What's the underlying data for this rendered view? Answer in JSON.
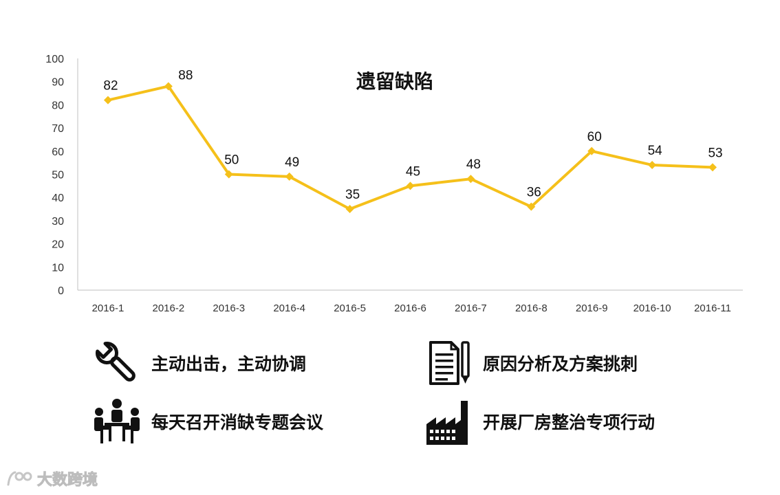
{
  "chart_data": {
    "type": "line",
    "title": "遗留缺陷",
    "categories": [
      "2016-1",
      "2016-2",
      "2016-3",
      "2016-4",
      "2016-5",
      "2016-6",
      "2016-7",
      "2016-8",
      "2016-9",
      "2016-10",
      "2016-11"
    ],
    "values": [
      82,
      88,
      50,
      49,
      35,
      45,
      48,
      36,
      60,
      54,
      53
    ],
    "ylim": [
      0,
      100
    ],
    "yticks": [
      "0",
      "10",
      "20",
      "30",
      "40",
      "50",
      "60",
      "70",
      "80",
      "90",
      "100"
    ],
    "grid": false,
    "line_color": "#F5C01A",
    "marker": "diamond"
  },
  "actions": [
    {
      "icon": "wrench-icon",
      "label": "主动出击，主动协调"
    },
    {
      "icon": "document-pencil-icon",
      "label": "原因分析及方案挑刺"
    },
    {
      "icon": "meeting-icon",
      "label": "每天召开消缺专题会议"
    },
    {
      "icon": "factory-icon",
      "label": "开展厂房整治专项行动"
    }
  ],
  "watermark": {
    "text": "大数跨境",
    "icon": "watermark-logo-icon"
  }
}
